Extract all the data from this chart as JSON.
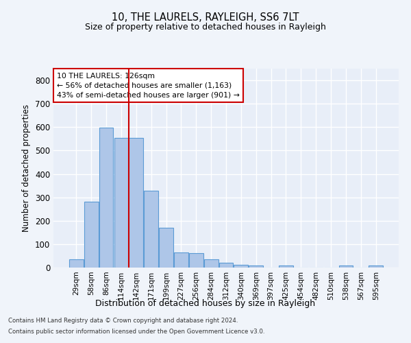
{
  "title_line1": "10, THE LAURELS, RAYLEIGH, SS6 7LT",
  "title_line2": "Size of property relative to detached houses in Rayleigh",
  "xlabel": "Distribution of detached houses by size in Rayleigh",
  "ylabel": "Number of detached properties",
  "bar_labels": [
    "29sqm",
    "58sqm",
    "86sqm",
    "114sqm",
    "142sqm",
    "171sqm",
    "199sqm",
    "227sqm",
    "256sqm",
    "284sqm",
    "312sqm",
    "340sqm",
    "369sqm",
    "397sqm",
    "425sqm",
    "454sqm",
    "482sqm",
    "510sqm",
    "538sqm",
    "567sqm",
    "595sqm"
  ],
  "bar_values": [
    35,
    280,
    597,
    553,
    553,
    328,
    170,
    65,
    63,
    35,
    20,
    12,
    10,
    0,
    8,
    0,
    0,
    0,
    8,
    0,
    8
  ],
  "bar_color": "#aec6e8",
  "bar_edge_color": "#5b9bd5",
  "background_color": "#e8eef8",
  "grid_color": "#ffffff",
  "annotation_box_text": "10 THE LAURELS: 126sqm\n← 56% of detached houses are smaller (1,163)\n43% of semi-detached houses are larger (901) →",
  "annotation_box_color": "#ffffff",
  "annotation_line_color": "#cc0000",
  "ylim": [
    0,
    850
  ],
  "yticks": [
    0,
    100,
    200,
    300,
    400,
    500,
    600,
    700,
    800
  ],
  "vline_x": 3.5,
  "footer_line1": "Contains HM Land Registry data © Crown copyright and database right 2024.",
  "footer_line2": "Contains public sector information licensed under the Open Government Licence v3.0."
}
